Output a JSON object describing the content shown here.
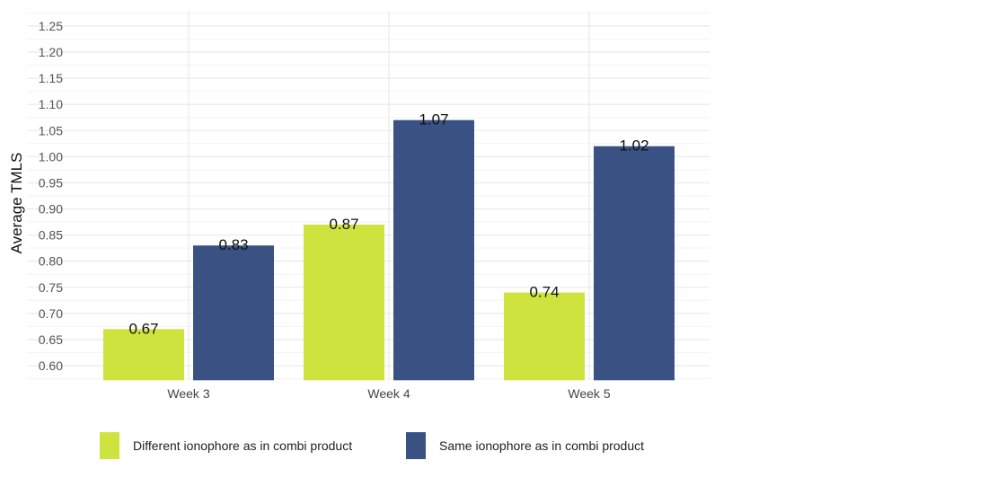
{
  "chart_data": {
    "type": "bar",
    "title": "",
    "xlabel": "",
    "ylabel": "Average TMLS",
    "categories": [
      "Week 3",
      "Week 4",
      "Week 5"
    ],
    "series": [
      {
        "name": "Different ionophore as in combi product",
        "color": "#cfe33e",
        "values": [
          0.67,
          0.87,
          0.74
        ],
        "labels": [
          "0.67",
          "0.87",
          "0.74"
        ]
      },
      {
        "name": "Same ionophore as in combi product",
        "color": "#3a5283",
        "values": [
          0.83,
          1.07,
          1.02
        ],
        "labels": [
          "0.83",
          "1.07",
          "1.02"
        ]
      }
    ],
    "ylim": [
      0.572,
      1.28
    ],
    "yticks": [
      "0.60",
      "0.65",
      "0.70",
      "0.75",
      "0.80",
      "0.85",
      "0.90",
      "0.95",
      "1.00",
      "1.05",
      "1.10",
      "1.15",
      "1.20",
      "1.25"
    ],
    "grid": true,
    "legend_position": "bottom"
  }
}
